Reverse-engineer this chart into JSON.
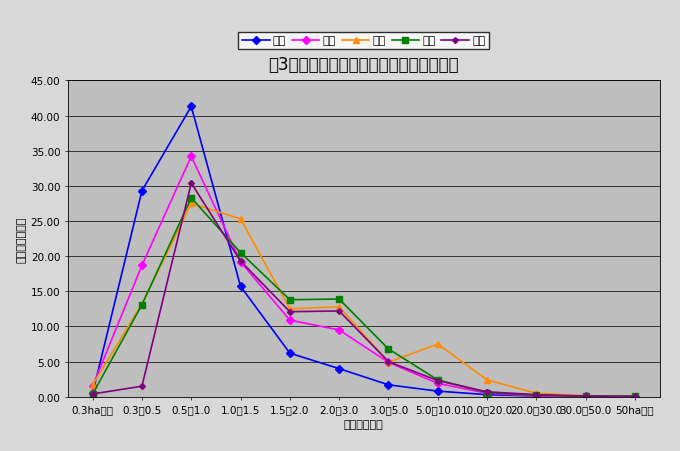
{
  "title": "図3　経営耕地面積規模別経営体構成割合",
  "xlabel": "経営耕地面積",
  "ylabel": "構成割合（％）",
  "categories": [
    "0.3ha未満",
    "0.3～0.5",
    "0.5～1.0",
    "1.0～1.5",
    "1.5～2.0",
    "2.0～3.0",
    "3.0～5.0",
    "5.0～10.0",
    "10.0～20.0",
    "20.0～30.0",
    "30.0～50.0",
    "50ha以上"
  ],
  "series": {
    "県北": {
      "values": [
        0.5,
        29.3,
        41.3,
        15.7,
        6.2,
        4.0,
        1.7,
        0.8,
        0.3,
        0.1,
        0.05,
        0.02
      ],
      "color": "#0000FF",
      "marker": "D",
      "markersize": 4,
      "linewidth": 1.2
    },
    "県央": {
      "values": [
        1.5,
        18.7,
        34.2,
        19.2,
        10.9,
        9.5,
        4.9,
        1.9,
        0.5,
        0.1,
        0.05,
        0.02
      ],
      "color": "#FF00FF",
      "marker": "D",
      "markersize": 4,
      "linewidth": 1.2
    },
    "鹿行": {
      "values": [
        1.7,
        13.2,
        27.5,
        25.3,
        12.5,
        12.8,
        4.9,
        7.5,
        2.4,
        0.5,
        0.15,
        0.05
      ],
      "color": "#FF8C00",
      "marker": "^",
      "markersize": 5,
      "linewidth": 1.2
    },
    "県南": {
      "values": [
        0.4,
        13.1,
        28.3,
        20.5,
        13.8,
        13.9,
        6.8,
        2.4,
        0.6,
        0.2,
        0.1,
        0.1
      ],
      "color": "#008000",
      "marker": "s",
      "markersize": 5,
      "linewidth": 1.2
    },
    "県西": {
      "values": [
        0.4,
        1.5,
        30.4,
        19.3,
        12.1,
        12.2,
        5.0,
        2.3,
        0.7,
        0.3,
        0.1,
        0.05
      ],
      "color": "#800080",
      "marker": "D",
      "markersize": 3,
      "linewidth": 1.2
    }
  },
  "ylim": [
    0,
    45.0
  ],
  "yticks": [
    0.0,
    5.0,
    10.0,
    15.0,
    20.0,
    25.0,
    30.0,
    35.0,
    40.0,
    45.0
  ],
  "plot_bg_color": "#BEBEBE",
  "fig_bg_color": "#D8D8D8",
  "title_fontsize": 12,
  "axis_label_fontsize": 8,
  "tick_fontsize": 7.5,
  "legend_fontsize": 8
}
